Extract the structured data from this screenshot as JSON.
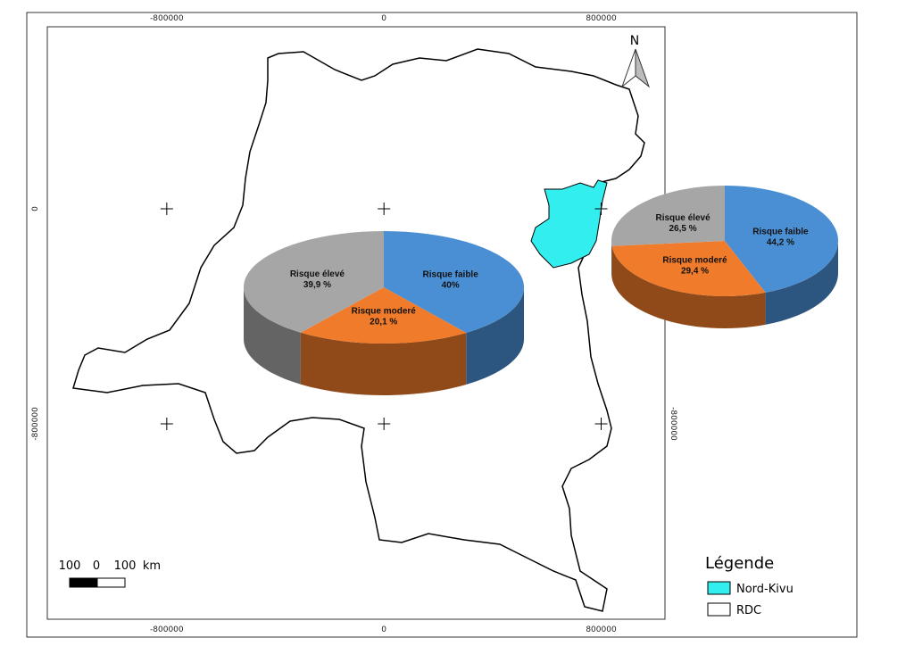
{
  "map": {
    "xlim": [
      -1240000,
      1035000
    ],
    "ylim": [
      -1527000,
      677000
    ],
    "xticks": [
      -800000,
      0,
      800000
    ],
    "yticks": [
      0,
      -800000
    ],
    "north": "N",
    "scale_bar": [
      "100",
      "0",
      "100",
      "km"
    ],
    "legend": {
      "title": "Légende",
      "items": [
        {
          "label": "Nord-Kivu",
          "color": "#33eeee"
        },
        {
          "label": "RDC",
          "color": "#ffffff"
        }
      ]
    }
  },
  "chart_data": [
    {
      "type": "pie",
      "categories": [
        "Risque faible",
        "Risque moderé",
        "Risque élevé"
      ],
      "values": [
        40,
        20.1,
        39.9
      ],
      "value_labels": [
        "40%",
        "20,1 %",
        "39,9 %"
      ],
      "colors": [
        "#4a8fd4",
        "#f07b2a",
        "#a6a6a6"
      ]
    },
    {
      "type": "pie",
      "categories": [
        "Risque faible",
        "Risque moderé",
        "Risque élevé"
      ],
      "values": [
        44.2,
        29.4,
        26.5
      ],
      "value_labels": [
        "44,2 %",
        "29,4 %",
        "26,5 %"
      ],
      "colors": [
        "#4a8fd4",
        "#f07b2a",
        "#a6a6a6"
      ]
    }
  ]
}
